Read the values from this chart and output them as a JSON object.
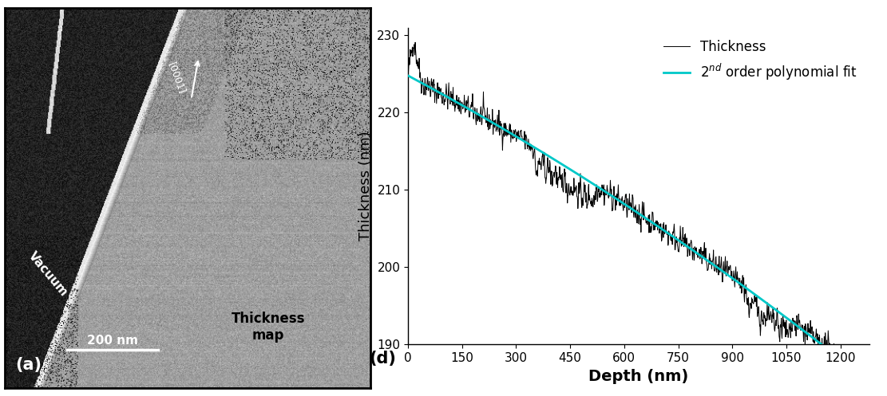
{
  "panel_a_label": "(a)",
  "panel_d_label": "(d)",
  "image_label": "Thickness\nmap",
  "scale_bar_text": "200 nm",
  "vacuum_text": "Vacuum",
  "crystal_direction": "[0001]",
  "ylabel": "Thickness (nm)",
  "xlabel": "Depth (nm)",
  "legend_thickness": "Thickness",
  "legend_fit": "2$^{nd}$ order polynomial fit",
  "ylim": [
    190,
    231
  ],
  "xlim": [
    0,
    1280
  ],
  "yticks": [
    190,
    200,
    210,
    220,
    230
  ],
  "xticks": [
    0,
    150,
    300,
    450,
    600,
    750,
    900,
    1050,
    1200
  ],
  "poly_coeffs": [
    -4.8e-06,
    -0.0248,
    224.8
  ],
  "noise_seed": 42,
  "noise_amplitude": 1.2,
  "num_points": 1280,
  "line_color": "#000000",
  "fit_color": "#00C8C8",
  "fit_linewidth": 2.0,
  "data_linewidth": 0.7,
  "background_color": "#ffffff",
  "xlabel_fontsize": 14,
  "ylabel_fontsize": 13,
  "tick_fontsize": 11,
  "legend_fontsize": 12
}
